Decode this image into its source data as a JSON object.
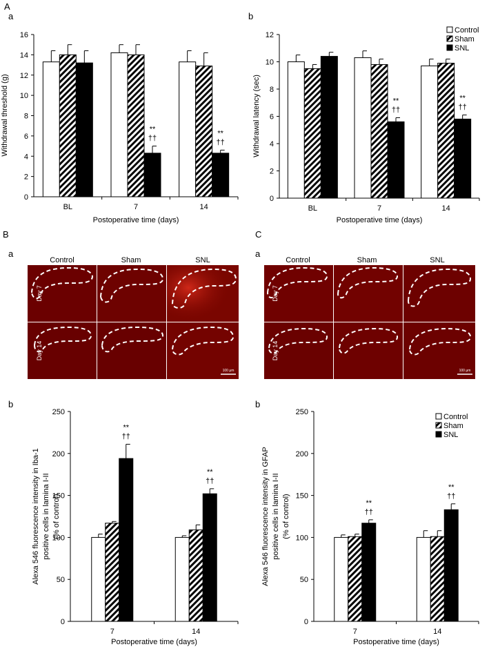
{
  "panel_labels": {
    "A": "A",
    "A_a": "a",
    "A_b": "b",
    "B": "B",
    "B_a": "a",
    "B_b": "b",
    "C": "C",
    "C_a": "a",
    "C_b": "b"
  },
  "micrographs": {
    "B": {
      "columns": [
        "Control",
        "Sham",
        "SNL"
      ],
      "rows": [
        "Day 7",
        "Day 14"
      ],
      "scale_bar": "100 μm"
    },
    "C": {
      "columns": [
        "Control",
        "Sham",
        "SNL"
      ],
      "rows": [
        "Day 7",
        "Day 14"
      ],
      "scale_bar": "100 μm"
    }
  },
  "colors": {
    "control": "#ffffff",
    "sham_hatch": "#000000",
    "snl": "#000000",
    "tissue": "#6b0000"
  },
  "chart_data": [
    {
      "id": "A_a",
      "type": "bar",
      "categories": [
        "BL",
        "7",
        "14"
      ],
      "series": [
        {
          "name": "Control",
          "values": [
            13.3,
            14.2,
            13.3
          ],
          "errors": [
            1.1,
            0.8,
            1.1
          ]
        },
        {
          "name": "Sham",
          "values": [
            14.0,
            14.0,
            12.9
          ],
          "errors": [
            1.0,
            1.0,
            1.3
          ]
        },
        {
          "name": "SNL",
          "values": [
            13.2,
            4.3,
            4.3
          ],
          "errors": [
            1.2,
            0.7,
            0.3
          ]
        }
      ],
      "annotations": [
        {
          "category": "7",
          "series": "SNL",
          "lines": [
            "**",
            "††"
          ]
        },
        {
          "category": "14",
          "series": "SNL",
          "lines": [
            "**",
            "††"
          ]
        }
      ],
      "xlabel": "Postoperative time (days)",
      "ylabel": "Withdrawal  threshold (g)",
      "ylim": [
        0,
        16
      ],
      "yticks": [
        0,
        2,
        4,
        6,
        8,
        10,
        12,
        14,
        16
      ],
      "legend": false
    },
    {
      "id": "A_b",
      "type": "bar",
      "categories": [
        "BL",
        "7",
        "14"
      ],
      "series": [
        {
          "name": "Control",
          "values": [
            10.0,
            10.3,
            9.7
          ],
          "errors": [
            0.5,
            0.5,
            0.5
          ]
        },
        {
          "name": "Sham",
          "values": [
            9.5,
            9.8,
            9.9
          ],
          "errors": [
            0.3,
            0.4,
            0.3
          ]
        },
        {
          "name": "SNL",
          "values": [
            10.4,
            5.6,
            5.8
          ],
          "errors": [
            0.3,
            0.3,
            0.3
          ]
        }
      ],
      "annotations": [
        {
          "category": "7",
          "series": "SNL",
          "lines": [
            "**",
            "††"
          ]
        },
        {
          "category": "14",
          "series": "SNL",
          "lines": [
            "**",
            "††"
          ]
        }
      ],
      "xlabel": "Postoperative time (days)",
      "ylabel": "Withdrawal latency (sec)",
      "ylim": [
        0,
        12
      ],
      "yticks": [
        0,
        2,
        4,
        6,
        8,
        10,
        12
      ],
      "legend": true,
      "legend_position": "top-right"
    },
    {
      "id": "B_b",
      "type": "bar",
      "categories": [
        "7",
        "14"
      ],
      "series": [
        {
          "name": "Control",
          "values": [
            100,
            100
          ],
          "errors": [
            4,
            2
          ]
        },
        {
          "name": "Sham",
          "values": [
            117,
            109
          ],
          "errors": [
            2,
            6
          ]
        },
        {
          "name": "SNL",
          "values": [
            194,
            152
          ],
          "errors": [
            17,
            6
          ]
        }
      ],
      "annotations": [
        {
          "category": "7",
          "series": "SNL",
          "lines": [
            "**",
            "††"
          ]
        },
        {
          "category": "14",
          "series": "SNL",
          "lines": [
            "**",
            "††"
          ]
        }
      ],
      "xlabel": "Postoperative time (days)",
      "ylabel_lines": [
        "Alexa 546 fluorescence intensity in Iba-1",
        "positive cells in lamina I-II",
        "(% of control)"
      ],
      "ylim": [
        0,
        250
      ],
      "yticks": [
        0,
        50,
        100,
        150,
        200,
        250
      ],
      "legend": false
    },
    {
      "id": "C_b",
      "type": "bar",
      "categories": [
        "7",
        "14"
      ],
      "series": [
        {
          "name": "Control",
          "values": [
            100,
            100
          ],
          "errors": [
            3,
            8
          ]
        },
        {
          "name": "Sham",
          "values": [
            101,
            101
          ],
          "errors": [
            3,
            7
          ]
        },
        {
          "name": "SNL",
          "values": [
            117,
            133
          ],
          "errors": [
            4,
            7
          ]
        }
      ],
      "annotations": [
        {
          "category": "7",
          "series": "SNL",
          "lines": [
            "**",
            "††"
          ]
        },
        {
          "category": "14",
          "series": "SNL",
          "lines": [
            "**",
            "††"
          ]
        }
      ],
      "xlabel": "Postoperative time (days)",
      "ylabel_lines": [
        "Alexa 546 fluorescence intensity in GFAP",
        "positive cells in lamina I-II",
        "(% of control)"
      ],
      "ylim": [
        0,
        250
      ],
      "yticks": [
        0,
        50,
        100,
        150,
        200,
        250
      ],
      "legend": true,
      "legend_position": "top-right"
    }
  ]
}
